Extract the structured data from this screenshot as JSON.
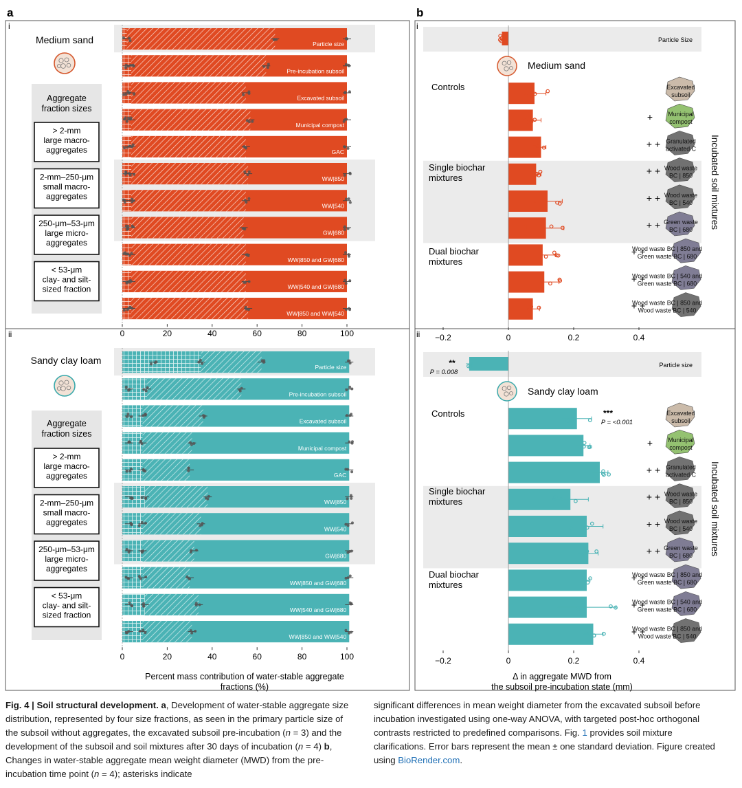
{
  "panels": {
    "a_label": "a",
    "b_label": "b",
    "sub_i": "i",
    "sub_ii": "ii"
  },
  "colors": {
    "orange": "#e04a22",
    "teal": "#4bb3b5",
    "band": "#ebebeb",
    "dots": "#555555"
  },
  "legend": {
    "heading": [
      "Aggregate",
      "fraction sizes"
    ],
    "items": [
      [
        "> 2-mm",
        "large macro-",
        "aggregates"
      ],
      [
        "2-mm–250-μm",
        "small macro-",
        "aggregates"
      ],
      [
        "250-μm–53-μm",
        "large micro-",
        "aggregates"
      ],
      [
        "< 53-μm",
        "clay- and silt-",
        "sized fraction"
      ]
    ]
  },
  "soils": {
    "medium_sand": "Medium sand",
    "sandy_clay_loam": "Sandy clay loam"
  },
  "groups": {
    "controls": "Controls",
    "single": [
      "Single biochar",
      "mixtures"
    ],
    "dual": [
      "Dual biochar",
      "mixtures"
    ]
  },
  "incubated_label": "Incubated soil mixtures",
  "plus_one": "+",
  "plus_two": "+ +",
  "icons": [
    {
      "name": "excavated-subsoil-icon",
      "label": [
        "Excavated",
        "subsoil"
      ],
      "color": "#c9b8a6"
    },
    {
      "name": "municipal-compost-icon",
      "label": [
        "Municipal",
        "compost"
      ],
      "color": "#8fbf6a"
    },
    {
      "name": "granulated-activated-carbon-icon",
      "label": [
        "Granulated",
        "activated C"
      ],
      "color": "#6b6b6b"
    },
    {
      "name": "wood-waste-bc-850-icon",
      "label": [
        "Wood waste",
        "BC | 850"
      ],
      "color": "#6b6b6b"
    },
    {
      "name": "wood-waste-bc-540-icon",
      "label": [
        "Wood waste",
        "BC | 540"
      ],
      "color": "#6b6b6b"
    },
    {
      "name": "green-waste-bc-680-icon",
      "label": [
        "Green waste",
        "BC | 680"
      ],
      "color": "#7a7790"
    },
    {
      "name": "ww850-gw680-icon",
      "label": [
        "Wood waste BC | 850 and",
        "Green waste BC | 680"
      ],
      "color": "#7a7790"
    },
    {
      "name": "ww540-gw680-icon",
      "label": [
        "Wood waste BC | 540 and",
        "Green waste BC | 680"
      ],
      "color": "#7a7790"
    },
    {
      "name": "ww850-ww540-icon",
      "label": [
        "Wood waste BC | 850 and",
        "Wood waste BC | 540"
      ],
      "color": "#6b6b6b"
    }
  ],
  "chart_data": [
    {
      "id": "a-i",
      "type": "bar",
      "orientation": "horizontal",
      "stacked": true,
      "soil": "Medium sand",
      "categories": [
        "Particle size",
        "Pre-incubation subsoil",
        "Excavated subsoil",
        "Municipal compost",
        "GAC",
        "WW|850",
        "WW|540",
        "GW|680",
        "WW|850  and GW|680",
        "WW|540 and GW|680",
        "WW|850 and WW|540"
      ],
      "cumulative_breaks": [
        [
          2,
          68,
          100
        ],
        [
          2,
          4,
          64,
          100
        ],
        [
          2,
          4,
          55,
          100
        ],
        [
          2,
          4,
          57,
          100
        ],
        [
          2,
          4,
          55,
          100
        ],
        [
          2,
          4,
          56,
          100
        ],
        [
          2,
          4,
          55,
          100
        ],
        [
          2,
          4,
          54,
          100
        ],
        [
          2,
          4,
          55,
          100
        ],
        [
          2,
          4,
          55,
          100
        ],
        [
          2,
          4,
          56,
          100
        ]
      ],
      "xlim": [
        0,
        100
      ],
      "xticks": [
        0,
        20,
        40,
        60,
        80,
        100
      ],
      "shaded_rows": [
        0,
        5,
        6,
        7
      ]
    },
    {
      "id": "a-ii",
      "type": "bar",
      "orientation": "horizontal",
      "stacked": true,
      "soil": "Sandy clay loam",
      "categories": [
        "Particle size",
        "Pre-incubation subsoil",
        "Excavated subsoil",
        "Municipal compost",
        "GAC",
        "WW|850",
        "WW|540",
        "GW|680",
        "WW|850  and GW|680",
        "WW|540 and GW|680",
        "WW|850 and WW|540"
      ],
      "cumulative_breaks": [
        [
          14,
          35,
          62,
          101
        ],
        [
          3,
          11,
          53,
          101
        ],
        [
          3,
          9,
          36,
          101
        ],
        [
          3,
          9,
          31,
          101
        ],
        [
          3,
          9,
          30,
          101
        ],
        [
          3,
          10,
          38,
          101
        ],
        [
          3,
          9,
          35,
          101
        ],
        [
          3,
          9,
          32,
          101
        ],
        [
          3,
          9,
          30,
          101
        ],
        [
          3,
          10,
          34,
          101
        ],
        [
          3,
          9,
          31,
          101
        ]
      ],
      "xlim": [
        0,
        100
      ],
      "xticks": [
        0,
        20,
        40,
        60,
        80,
        100
      ],
      "xlabel": [
        "Percent mass contribution of water-stable aggregate",
        "fractions (%)"
      ],
      "shaded_rows": [
        0,
        5,
        6,
        7
      ]
    },
    {
      "id": "b-i",
      "type": "bar",
      "orientation": "horizontal",
      "soil": "Medium sand",
      "categories": [
        "Particle Size",
        "Excavated subsoil",
        "Municipal compost",
        "Granulated activated C",
        "Wood waste BC | 850",
        "Wood waste BC | 540",
        "Green waste BC | 680",
        "Wood waste BC | 850 and Green waste BC | 680",
        "Wood waste BC | 540 and Green waste BC | 680",
        "Wood waste BC | 850 and Wood waste BC | 540"
      ],
      "values": [
        -0.02,
        0.08,
        0.075,
        0.1,
        0.085,
        0.12,
        0.115,
        0.105,
        0.11,
        0.075
      ],
      "errors": [
        0.005,
        0.035,
        0.025,
        0.015,
        0.015,
        0.045,
        0.055,
        0.04,
        0.045,
        0.02
      ],
      "xlim": [
        -0.22,
        0.5
      ],
      "xticks": [
        -0.2,
        0,
        0.2,
        0.4
      ],
      "row_labels": [
        "Particle Size"
      ],
      "shaded_rows": [
        0,
        4,
        5,
        6
      ]
    },
    {
      "id": "b-ii",
      "type": "bar",
      "orientation": "horizontal",
      "soil": "Sandy clay loam",
      "categories": [
        "Particle size",
        "Excavated subsoil",
        "Municipal compost",
        "Granulated activated C",
        "Wood waste BC | 850",
        "Wood waste BC | 540",
        "Green waste BC | 680",
        "Wood waste BC | 850 and Green waste BC | 680",
        "Wood waste BC | 540 and Green waste BC | 680",
        "Wood waste BC | 850 and Wood waste BC | 540"
      ],
      "values": [
        -0.12,
        0.21,
        0.23,
        0.28,
        0.19,
        0.24,
        0.245,
        0.24,
        0.24,
        0.26
      ],
      "errors": [
        0.01,
        0.045,
        0.02,
        0.025,
        0.055,
        0.05,
        0.03,
        0.01,
        0.09,
        0.03
      ],
      "xlim": [
        -0.22,
        0.5
      ],
      "xticks": [
        -0.2,
        0,
        0.2,
        0.4
      ],
      "xlabel": [
        "Δ  in aggregate MWD from",
        "the subsoil pre-incubation state (mm)"
      ],
      "row_labels": [
        "Particle size"
      ],
      "annotations": [
        {
          "row": 0,
          "stars": "**",
          "p": "P = 0.008"
        },
        {
          "row": 1,
          "stars": "***",
          "p": "P = <0.001"
        }
      ],
      "shaded_rows": [
        0,
        4,
        5,
        6
      ]
    }
  ],
  "caption": {
    "col1_runs": [
      {
        "b": true,
        "t": "Fig. 4 | Soil structural development. a"
      },
      {
        "b": false,
        "t": ", Development of water-stable aggregate size distribution, represented by four size fractions, as seen in the primary particle size of the subsoil without aggregates, the excavated subsoil pre-incubation ("
      },
      {
        "b": false,
        "i": true,
        "t": "n"
      },
      {
        "b": false,
        "t": " = 3) and the development of the subsoil and soil mixtures after 30 days of incubation ("
      },
      {
        "b": false,
        "i": true,
        "t": "n"
      },
      {
        "b": false,
        "t": " = 4) "
      },
      {
        "b": true,
        "t": "b"
      },
      {
        "b": false,
        "t": ", Changes in water-stable aggregate mean weight diameter (MWD) from the pre-incubation time point ("
      },
      {
        "b": false,
        "i": true,
        "t": "n"
      },
      {
        "b": false,
        "t": " = 4); asterisks indicate"
      }
    ],
    "col2_runs": [
      {
        "t": "significant differences in mean weight diameter from the excavated subsoil before incubation investigated using one-way ANOVA, with targeted post-hoc orthogonal contrasts restricted to predefined comparisons. Fig. "
      },
      {
        "link": true,
        "t": "1"
      },
      {
        "t": " provides soil mixture clarifications. Error bars represent the mean ± one standard deviation. Figure created using "
      },
      {
        "link": true,
        "t": "BioRender.com"
      },
      {
        "t": "."
      }
    ]
  }
}
